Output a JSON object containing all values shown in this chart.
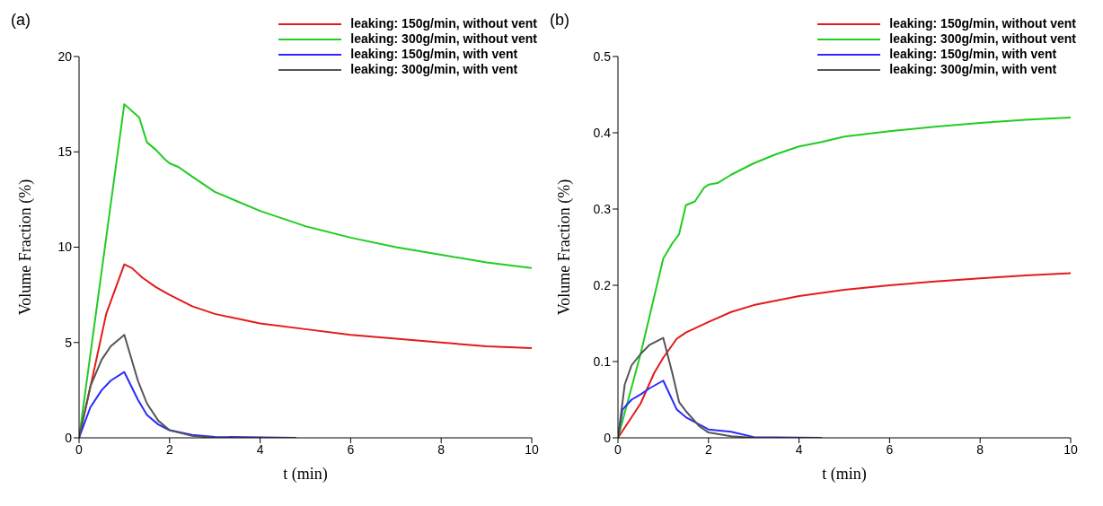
{
  "chart_data": [
    {
      "type": "line",
      "title": "(a)",
      "xlabel": "t (min)",
      "ylabel": "Volume Fraction (%)",
      "xlim": [
        0,
        10
      ],
      "xticks": [
        0,
        2,
        4,
        6,
        8,
        10
      ],
      "ylim": [
        0,
        20
      ],
      "yticks": [
        0,
        5,
        10,
        15,
        20
      ],
      "grid": false,
      "legend": "top right",
      "marker": "none",
      "line_style": "solid",
      "series": [
        {
          "name": "leaking: 150g/min, without vent",
          "color": "#e41a1c",
          "x": [
            0,
            0.3,
            0.6,
            1,
            1.17,
            1.4,
            1.7,
            2,
            2.5,
            3,
            4,
            5,
            6,
            7,
            8,
            9,
            10
          ],
          "values": [
            0,
            3.2,
            6.5,
            9.1,
            8.9,
            8.4,
            7.9,
            7.5,
            6.9,
            6.5,
            6.0,
            5.7,
            5.4,
            5.2,
            5.0,
            4.8,
            4.7
          ]
        },
        {
          "name": "leaking: 300g/min, without vent",
          "color": "#22cc22",
          "x": [
            0,
            1,
            1.33,
            1.5,
            1.7,
            1.9,
            2,
            2.2,
            2.5,
            3,
            3.5,
            4,
            4.5,
            5,
            6,
            7,
            8,
            9,
            10
          ],
          "values": [
            0,
            17.5,
            16.8,
            15.5,
            15.1,
            14.6,
            14.4,
            14.2,
            13.7,
            12.9,
            12.4,
            11.9,
            11.5,
            11.1,
            10.5,
            10.0,
            9.6,
            9.2,
            8.9
          ]
        },
        {
          "name": "leaking: 150g/min, with vent",
          "color": "#2a2aff",
          "x": [
            0,
            0.25,
            0.5,
            0.7,
            1,
            1.3,
            1.5,
            1.75,
            2,
            2.5,
            3,
            4.8
          ],
          "values": [
            0,
            1.6,
            2.5,
            3.0,
            3.45,
            2.0,
            1.2,
            0.7,
            0.4,
            0.15,
            0.05,
            0
          ]
        },
        {
          "name": "leaking: 300g/min, with vent",
          "color": "#555555",
          "x": [
            0,
            0.25,
            0.5,
            0.7,
            1,
            1.3,
            1.5,
            1.75,
            2,
            2.5,
            3,
            4.8
          ],
          "values": [
            0,
            2.7,
            4.1,
            4.8,
            5.4,
            3.0,
            1.8,
            0.9,
            0.4,
            0.1,
            0,
            0
          ]
        }
      ]
    },
    {
      "type": "line",
      "title": "(b)",
      "xlabel": "t (min)",
      "ylabel": "Volume Fraction (%)",
      "xlim": [
        0,
        10
      ],
      "xticks": [
        0,
        2,
        4,
        6,
        8,
        10
      ],
      "ylim": [
        0,
        0.5
      ],
      "yticks": [
        0,
        0.1,
        0.2,
        0.3,
        0.4,
        0.5
      ],
      "grid": false,
      "legend": "top right",
      "marker": "none",
      "line_style": "solid",
      "series": [
        {
          "name": "leaking: 150g/min, without vent",
          "color": "#e41a1c",
          "x": [
            0,
            0.5,
            0.8,
            1,
            1.3,
            1.5,
            2,
            2.5,
            3,
            4,
            5,
            6,
            7,
            8,
            9,
            10
          ],
          "values": [
            0,
            0.045,
            0.085,
            0.105,
            0.13,
            0.138,
            0.152,
            0.165,
            0.174,
            0.186,
            0.194,
            0.2,
            0.205,
            0.209,
            0.213,
            0.216
          ]
        },
        {
          "name": "leaking: 300g/min, without vent",
          "color": "#22cc22",
          "x": [
            0,
            0.5,
            1,
            1.2,
            1.35,
            1.5,
            1.7,
            1.9,
            2,
            2.2,
            2.5,
            3,
            3.5,
            4,
            4.5,
            5,
            6,
            7,
            8,
            9,
            10
          ],
          "values": [
            0,
            0.11,
            0.235,
            0.255,
            0.267,
            0.305,
            0.31,
            0.328,
            0.332,
            0.334,
            0.345,
            0.36,
            0.372,
            0.382,
            0.388,
            0.395,
            0.402,
            0.408,
            0.413,
            0.417,
            0.42
          ]
        },
        {
          "name": "leaking: 150g/min, with vent",
          "color": "#2a2aff",
          "x": [
            0,
            0.1,
            0.3,
            0.5,
            0.7,
            1,
            1.3,
            1.5,
            2,
            2.5,
            3,
            4.5
          ],
          "values": [
            0,
            0.037,
            0.05,
            0.057,
            0.065,
            0.075,
            0.037,
            0.027,
            0.011,
            0.008,
            0.001,
            0
          ]
        },
        {
          "name": "leaking: 300g/min, with vent",
          "color": "#555555",
          "x": [
            0,
            0.15,
            0.3,
            0.5,
            0.7,
            1,
            1.2,
            1.35,
            1.5,
            1.8,
            2,
            2.5,
            3,
            4.5
          ],
          "values": [
            0,
            0.07,
            0.095,
            0.11,
            0.122,
            0.131,
            0.085,
            0.047,
            0.035,
            0.015,
            0.007,
            0.002,
            0,
            0
          ]
        }
      ]
    }
  ]
}
